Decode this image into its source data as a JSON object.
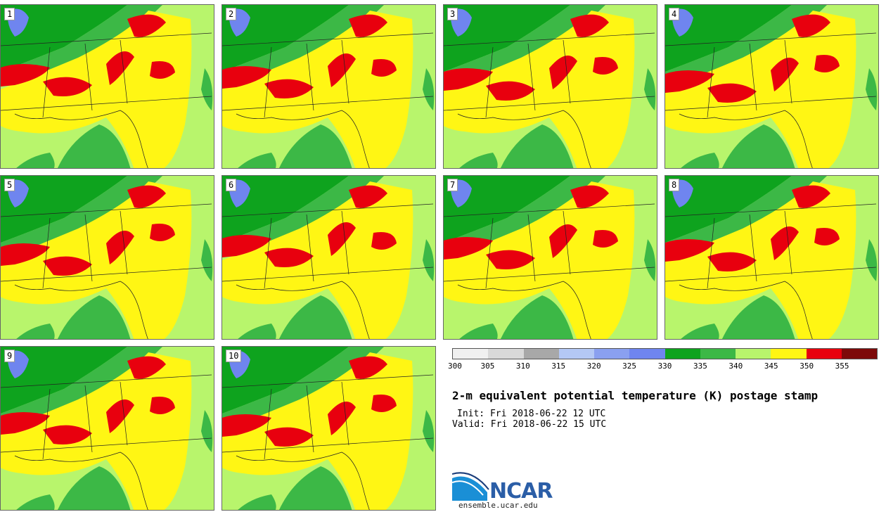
{
  "panels": [
    {
      "label": "1"
    },
    {
      "label": "2"
    },
    {
      "label": "3"
    },
    {
      "label": "4"
    },
    {
      "label": "5"
    },
    {
      "label": "6"
    },
    {
      "label": "7"
    },
    {
      "label": "8"
    },
    {
      "label": "9"
    },
    {
      "label": "10"
    }
  ],
  "legend": {
    "colors": [
      "#f0f0f0",
      "#d9d9d9",
      "#a8a8a8",
      "#b4c8f5",
      "#8aa0f0",
      "#6f85ef",
      "#0ea31e",
      "#3cb846",
      "#b8f56c",
      "#fff614",
      "#e8000e",
      "#7d0a0a"
    ],
    "ticks": [
      "300",
      "305",
      "310",
      "315",
      "320",
      "325",
      "330",
      "335",
      "340",
      "345",
      "350",
      "355"
    ]
  },
  "title": "2-m equivalent potential temperature (K) postage stamp",
  "init": "Init: Fri 2018-06-22 12 UTC",
  "valid": "Valid: Fri 2018-06-22 15 UTC",
  "logo": {
    "text": "NCAR",
    "url": "ensemble.ucar.edu"
  }
}
